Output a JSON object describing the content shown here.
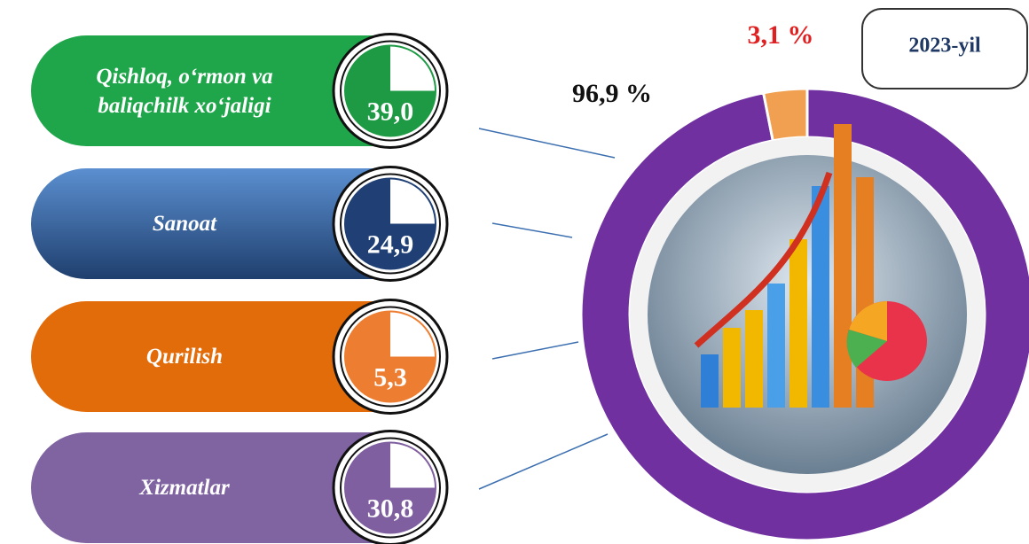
{
  "chart_data": [
    {
      "type": "donut",
      "title": "2023-yil",
      "values": [
        96.9,
        3.1
      ],
      "value_labels": [
        "96,9 %",
        "3,1 %"
      ],
      "colors": [
        "#7030a0",
        "#f0a050"
      ],
      "label_colors": [
        "#111111",
        "#e02020"
      ]
    },
    {
      "type": "list",
      "categories": [
        "Qishloq, o‘rmon va baliqchilk xo‘jaligi",
        "Sanoat",
        "Qurilish",
        "Xizmatlar"
      ],
      "values": [
        39.0,
        24.9,
        5.3,
        30.8
      ],
      "value_labels": [
        "39,0",
        "24,9",
        "5,3",
        "30,8"
      ],
      "colors": [
        "#1fa64b",
        "#2e5a94",
        "#e36c0a",
        "#8064a2"
      ],
      "circle_colors": [
        "#1e9a44",
        "#1f3f75",
        "#ed7d31",
        "#7f5fa0"
      ]
    }
  ]
}
